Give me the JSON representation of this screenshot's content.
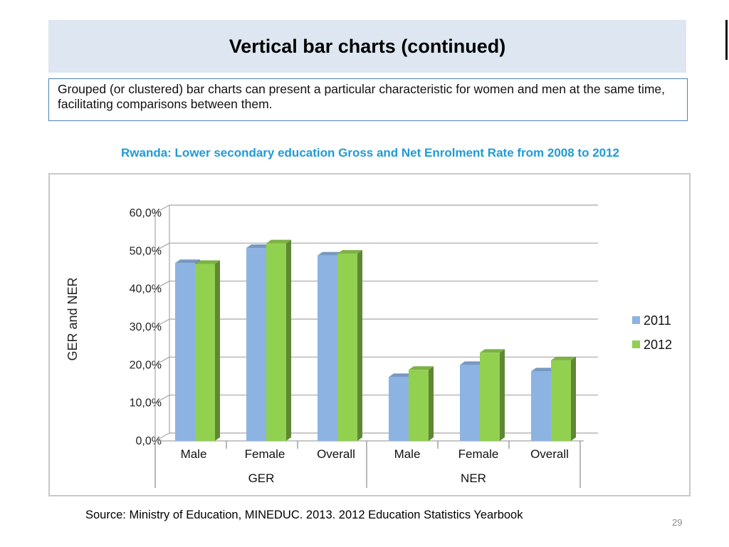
{
  "slide": {
    "title": "Vertical bar charts (continued)",
    "description": "Grouped (or clustered) bar charts can present a particular characteristic for women and men at the same time, facilitating comparisons between them.",
    "source": "Source: Ministry of Education, MINEDUC. 2013. 2012 Education Statistics Yearbook",
    "page_number": "29"
  },
  "chart_data": {
    "type": "bar",
    "title": "Rwanda: Lower secondary education Gross and Net Enrolment Rate from 2008 to 2012",
    "ylabel": "GER and NER",
    "xlabel": "",
    "ylim": [
      0,
      60
    ],
    "yticks": [
      "0,0%",
      "10,0%",
      "20,0%",
      "30,0%",
      "40,0%",
      "50,0%",
      "60,0%"
    ],
    "categories": [
      "Male",
      "Female",
      "Overall",
      "Male",
      "Female",
      "Overall"
    ],
    "groups": [
      "GER",
      "NER"
    ],
    "grid": true,
    "legend_position": "right",
    "series": [
      {
        "name": "2011",
        "color": "#8db3e2",
        "values": [
          46.8,
          50.8,
          48.8,
          16.8,
          20.0,
          18.3
        ]
      },
      {
        "name": "2012",
        "color": "#92d050",
        "values": [
          46.6,
          52.0,
          49.3,
          18.7,
          23.2,
          21.2
        ]
      }
    ]
  }
}
